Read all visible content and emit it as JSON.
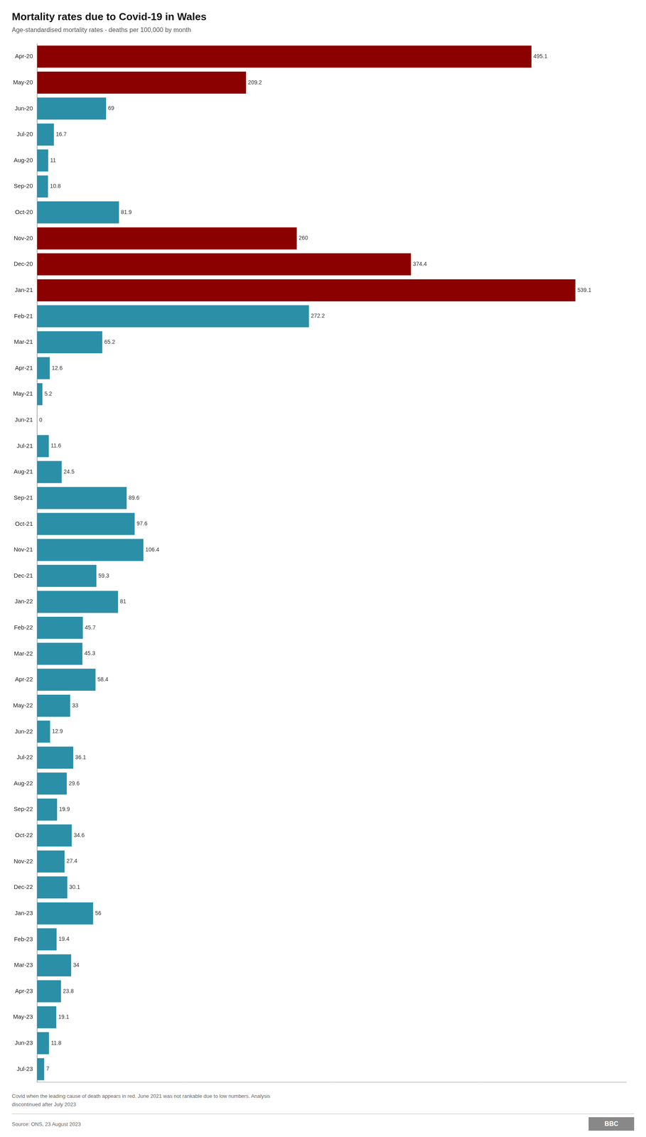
{
  "chart_data": {
    "type": "bar",
    "orientation": "horizontal",
    "title": "Mortality rates due to Covid-19 in Wales",
    "subtitle": "Age-standardised mortality rates - deaths per 100,000 by month",
    "footnote": "Covid when the leading cause of death appears in red. June 2021 was not rankable due to low numbers. Analysis\ndiscontinued after July 2023",
    "source": "Source: ONS, 23 August 2023",
    "annotations": [
      "BBC"
    ],
    "categories": [
      "Apr-20",
      "May-20",
      "Jun-20",
      "Jul-20",
      "Aug-20",
      "Sep-20",
      "Oct-20",
      "Nov-20",
      "Dec-20",
      "Jan-21",
      "Feb-21",
      "Mar-21",
      "Apr-21",
      "May-21",
      "Jun-21",
      "Jul-21",
      "Aug-21",
      "Sep-21",
      "Oct-21",
      "Nov-21",
      "Dec-21",
      "Jan-22",
      "Feb-22",
      "Mar-22",
      "Apr-22",
      "May-22",
      "Jun-22",
      "Jul-22",
      "Aug-22",
      "Sep-22",
      "Oct-22",
      "Nov-22",
      "Dec-22",
      "Jan-23",
      "Feb-23",
      "Mar-23",
      "Apr-23",
      "May-23",
      "Jun-23",
      "Jul-23"
    ],
    "values": [
      495.1,
      209.2,
      69,
      16.7,
      11,
      10.8,
      81.9,
      260,
      374.4,
      539.1,
      272.2,
      65.2,
      12.6,
      5.2,
      0,
      11.6,
      24.5,
      89.6,
      97.6,
      106.4,
      59.3,
      81,
      45.7,
      45.3,
      58.4,
      33,
      12.9,
      36.1,
      29.6,
      19.9,
      34.6,
      27.4,
      30.1,
      56,
      19.4,
      34,
      23.8,
      19.1,
      11.8,
      7
    ],
    "colors": [
      "#8B0000",
      "#8B0000",
      "#2B8FA8",
      "#2B8FA8",
      "#2B8FA8",
      "#2B8FA8",
      "#2B8FA8",
      "#8B0000",
      "#8B0000",
      "#8B0000",
      "#2B8FA8",
      "#2B8FA8",
      "#2B8FA8",
      "#2B8FA8",
      "#2B8FA8",
      "#2B8FA8",
      "#2B8FA8",
      "#2B8FA8",
      "#2B8FA8",
      "#2B8FA8",
      "#2B8FA8",
      "#2B8FA8",
      "#2B8FA8",
      "#2B8FA8",
      "#2B8FA8",
      "#2B8FA8",
      "#2B8FA8",
      "#2B8FA8",
      "#2B8FA8",
      "#2B8FA8",
      "#2B8FA8",
      "#2B8FA8",
      "#2B8FA8",
      "#2B8FA8",
      "#2B8FA8",
      "#2B8FA8",
      "#2B8FA8",
      "#2B8FA8",
      "#2B8FA8",
      "#2B8FA8"
    ],
    "xlim": [
      0,
      590
    ],
    "data_labels": true,
    "tick_labels": "y",
    "grid": false
  }
}
